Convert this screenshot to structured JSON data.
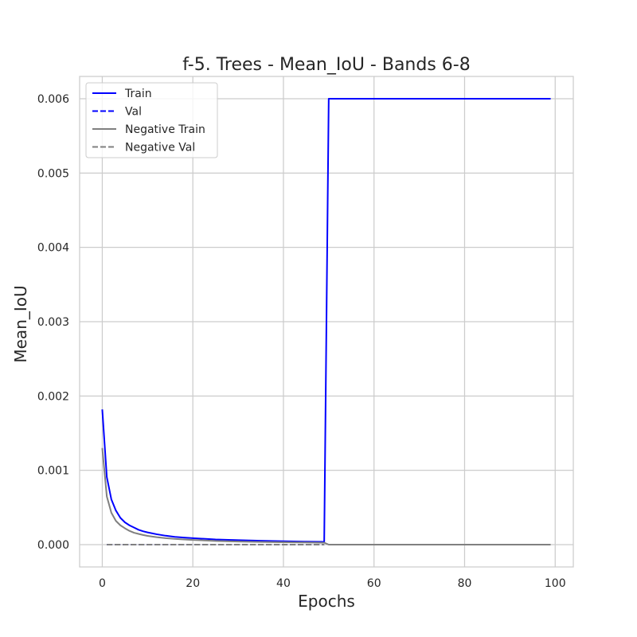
{
  "chart_data": {
    "type": "line",
    "title": "f-5. Trees - Mean_IoU - Bands 6-8",
    "xlabel": "Epochs",
    "ylabel": "Mean_IoU",
    "xlim": [
      -5,
      104
    ],
    "ylim": [
      -0.0003,
      0.0063
    ],
    "xticks": [
      0,
      20,
      40,
      60,
      80,
      100
    ],
    "xtick_labels": [
      "0",
      "20",
      "40",
      "60",
      "80",
      "100"
    ],
    "yticks": [
      0.0,
      0.001,
      0.002,
      0.003,
      0.004,
      0.005,
      0.006
    ],
    "ytick_labels": [
      "0.000",
      "0.001",
      "0.002",
      "0.003",
      "0.004",
      "0.005",
      "0.006"
    ],
    "grid": true,
    "legend_position": "upper-left",
    "series": [
      {
        "name": "Train",
        "color": "#0000ff",
        "dash": "solid",
        "x": [
          0,
          1,
          2,
          3,
          4,
          5,
          6,
          7,
          8,
          9,
          10,
          12,
          14,
          16,
          18,
          20,
          25,
          30,
          35,
          40,
          45,
          49,
          50,
          60,
          70,
          80,
          90,
          99
        ],
        "y": [
          0.00182,
          0.00091,
          0.00061,
          0.00046,
          0.00036,
          0.0003,
          0.00026,
          0.00023,
          0.0002,
          0.00018,
          0.000165,
          0.00014,
          0.00012,
          0.000105,
          9.5e-05,
          8.7e-05,
          7e-05,
          6e-05,
          5.2e-05,
          4.6e-05,
          4e-05,
          3.7e-05,
          0.006,
          0.006,
          0.006,
          0.006,
          0.006,
          0.006
        ]
      },
      {
        "name": "Val",
        "color": "#0000ff",
        "dash": "dashed",
        "x": [
          1,
          10,
          20,
          30,
          40,
          49
        ],
        "y": [
          0.0,
          0.0,
          0.0,
          0.0,
          0.0,
          0.0
        ]
      },
      {
        "name": "Negative Train",
        "color": "#808080",
        "dash": "solid",
        "x": [
          0,
          1,
          2,
          3,
          4,
          5,
          6,
          7,
          8,
          9,
          10,
          12,
          14,
          16,
          18,
          20,
          25,
          30,
          35,
          40,
          45,
          49,
          50,
          60,
          70,
          80,
          90,
          99
        ],
        "y": [
          0.0013,
          0.00065,
          0.00043,
          0.00032,
          0.00026,
          0.00022,
          0.000185,
          0.00016,
          0.000145,
          0.00013,
          0.000118,
          0.0001,
          8.7e-05,
          7.7e-05,
          6.9e-05,
          6.3e-05,
          5e-05,
          4.2e-05,
          3.6e-05,
          3.2e-05,
          2.9e-05,
          2.6e-05,
          0.0,
          0.0,
          0.0,
          0.0,
          0.0,
          0.0
        ]
      },
      {
        "name": "Negative Val",
        "color": "#808080",
        "dash": "dashed",
        "x": [
          1,
          10,
          20,
          30,
          40,
          49
        ],
        "y": [
          0.0,
          0.0,
          0.0,
          0.0,
          0.0,
          0.0
        ]
      }
    ]
  }
}
